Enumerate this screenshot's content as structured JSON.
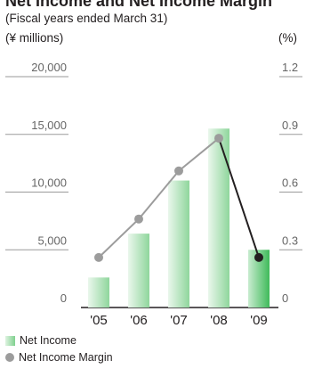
{
  "chart_data": {
    "type": "bar",
    "title": "Net Income and Net Income Margin",
    "subtitle": "(Fiscal years ended March 31)",
    "y_left_unit": "(¥ millions)",
    "y_right_unit": "(%)",
    "categories": [
      "'05",
      "'06",
      "'07",
      "'08",
      "'09"
    ],
    "y_left_ticks": [
      "20,000",
      "15,000",
      "10,000",
      "5,000",
      "0"
    ],
    "y_right_ticks": [
      "1.2",
      "0.9",
      "0.6",
      "0.3",
      "0"
    ],
    "ylim_left": [
      0,
      20000
    ],
    "ylim_right": [
      0,
      1.2
    ],
    "grid": true,
    "legend_position": "bottom-left",
    "series": [
      {
        "name": "Net Income",
        "type": "bar",
        "axis": "left",
        "values": [
          2600,
          6400,
          11000,
          15500,
          5000
        ],
        "color": "#7fd08e"
      },
      {
        "name": "Net Income Margin",
        "type": "line",
        "axis": "right",
        "values": [
          0.26,
          0.46,
          0.71,
          0.88,
          0.26
        ],
        "color": "#9c9c9c",
        "highlight_color": "#231f20"
      }
    ]
  }
}
